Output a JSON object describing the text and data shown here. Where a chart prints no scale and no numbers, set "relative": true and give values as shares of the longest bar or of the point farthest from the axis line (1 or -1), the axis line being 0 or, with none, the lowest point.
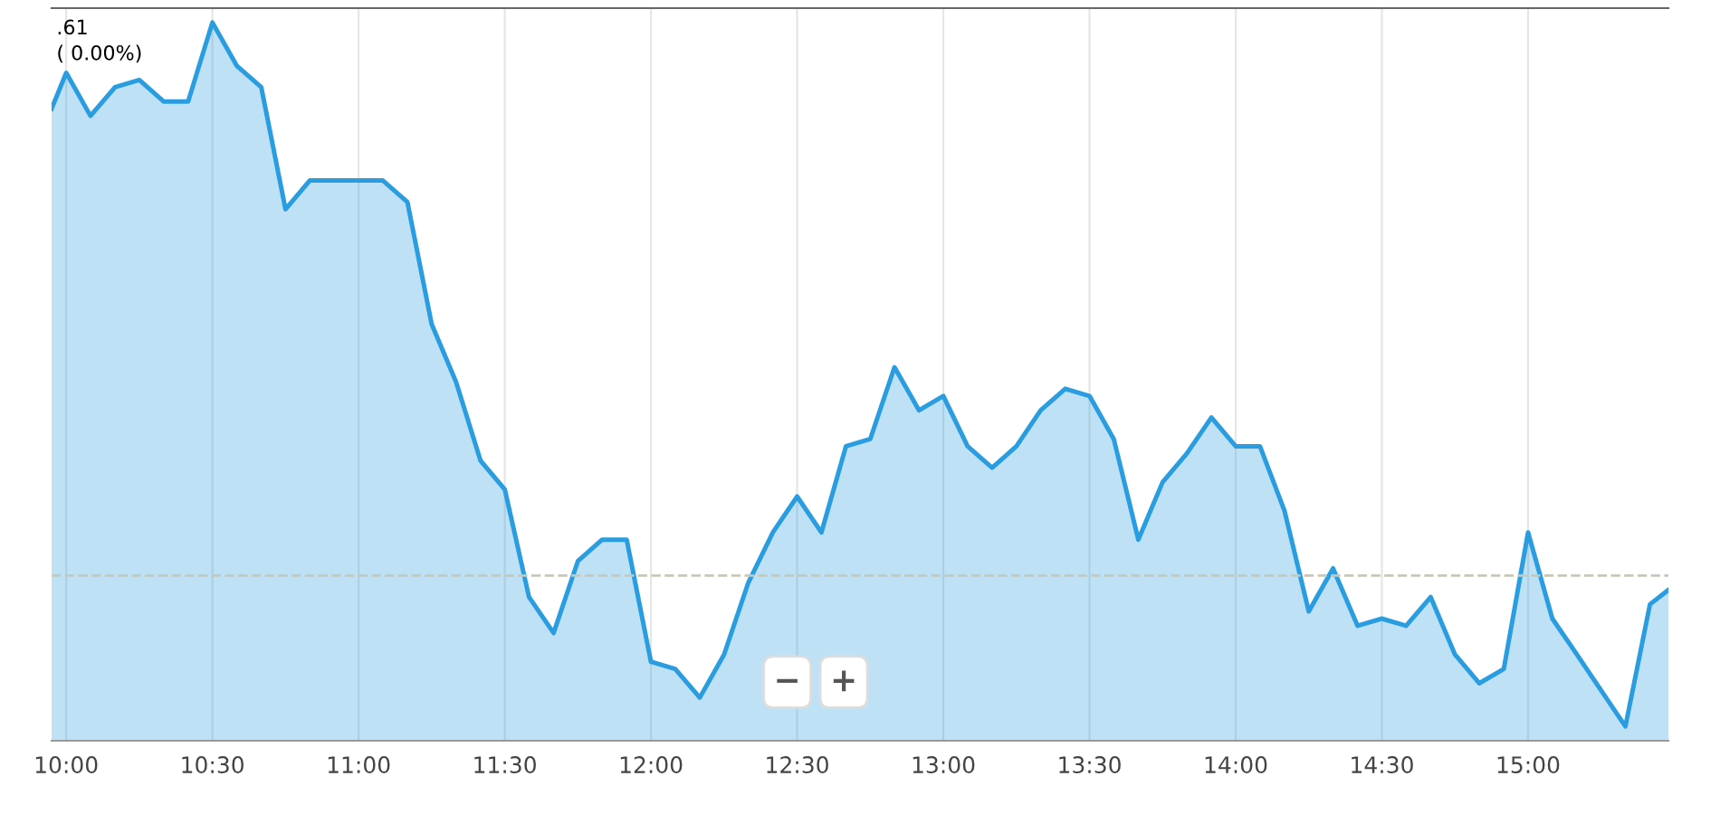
{
  "chart_data": {
    "type": "area",
    "relative": true,
    "x": [
      9.95,
      10.0,
      10.083,
      10.167,
      10.25,
      10.333,
      10.417,
      10.5,
      10.583,
      10.667,
      10.75,
      10.833,
      10.917,
      11.0,
      11.083,
      11.167,
      11.25,
      11.333,
      11.417,
      11.5,
      11.583,
      11.667,
      11.75,
      11.833,
      11.917,
      12.0,
      12.083,
      12.167,
      12.25,
      12.333,
      12.417,
      12.5,
      12.583,
      12.667,
      12.75,
      12.833,
      12.917,
      13.0,
      13.083,
      13.167,
      13.25,
      13.333,
      13.417,
      13.5,
      13.583,
      13.667,
      13.75,
      13.833,
      13.917,
      14.0,
      14.083,
      14.167,
      14.25,
      14.333,
      14.417,
      14.5,
      14.583,
      14.667,
      14.75,
      14.833,
      14.917,
      15.0,
      15.083,
      15.167,
      15.25,
      15.333,
      15.417,
      15.48
    ],
    "series": [
      {
        "color": "#2a9de0",
        "values": [
          0.88,
          0.93,
          0.87,
          0.91,
          0.92,
          0.89,
          0.89,
          1.0,
          0.94,
          0.91,
          0.74,
          0.78,
          0.78,
          0.78,
          0.78,
          0.75,
          0.58,
          0.5,
          0.39,
          0.35,
          0.2,
          0.15,
          0.25,
          0.28,
          0.28,
          0.11,
          0.1,
          0.06,
          0.12,
          0.22,
          0.29,
          0.34,
          0.29,
          0.41,
          0.42,
          0.52,
          0.46,
          0.48,
          0.41,
          0.38,
          0.41,
          0.46,
          0.49,
          0.48,
          0.42,
          0.28,
          0.36,
          0.4,
          0.45,
          0.41,
          0.41,
          0.32,
          0.18,
          0.24,
          0.16,
          0.17,
          0.16,
          0.2,
          0.12,
          0.08,
          0.1,
          0.29,
          0.17,
          0.12,
          0.07,
          0.02,
          0.19,
          0.21
        ]
      }
    ],
    "xlim": [
      9.95,
      15.48
    ],
    "xticks": [
      {
        "value": 10,
        "label": "10:00"
      },
      {
        "value": 10.5,
        "label": "10:30"
      },
      {
        "value": 11,
        "label": "11:00"
      },
      {
        "value": 11.5,
        "label": "11:30"
      },
      {
        "value": 12,
        "label": "12:00"
      },
      {
        "value": 12.5,
        "label": "12:30"
      },
      {
        "value": 13,
        "label": "13:00"
      },
      {
        "value": 13.5,
        "label": "13:30"
      },
      {
        "value": 14,
        "label": "14:00"
      },
      {
        "value": 14.5,
        "label": "14:30"
      },
      {
        "value": 15,
        "label": "15:00"
      }
    ],
    "ref_lines": [
      {
        "axis": "y",
        "value": 0.23,
        "color": "#c8c8b4",
        "line_style": "dashed"
      }
    ],
    "annotations": [
      ".61",
      "( 0.00%)",
      "−",
      "+"
    ],
    "grid": "x",
    "marker": "none",
    "line_style": "solid"
  }
}
